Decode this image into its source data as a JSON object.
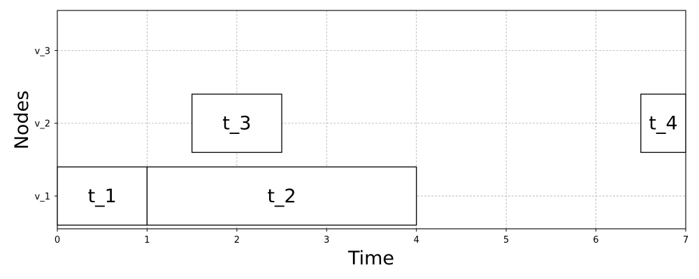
{
  "chart_data": {
    "type": "gantt",
    "xlabel": "Time",
    "ylabel": "Nodes",
    "xlim": [
      0,
      7
    ],
    "x_ticks": [
      0,
      1,
      2,
      3,
      4,
      5,
      6,
      7
    ],
    "nodes": [
      "v_1",
      "v_2",
      "v_3"
    ],
    "ylim": [
      0.55,
      3.55
    ],
    "grid": true,
    "tasks": [
      {
        "label": "t_1",
        "node": "v_1",
        "start": 0,
        "end": 1
      },
      {
        "label": "t_2",
        "node": "v_1",
        "start": 1,
        "end": 4
      },
      {
        "label": "t_3",
        "node": "v_2",
        "start": 1.5,
        "end": 2.5
      },
      {
        "label": "t_4",
        "node": "v_2",
        "start": 6.5,
        "end": 7
      }
    ]
  }
}
